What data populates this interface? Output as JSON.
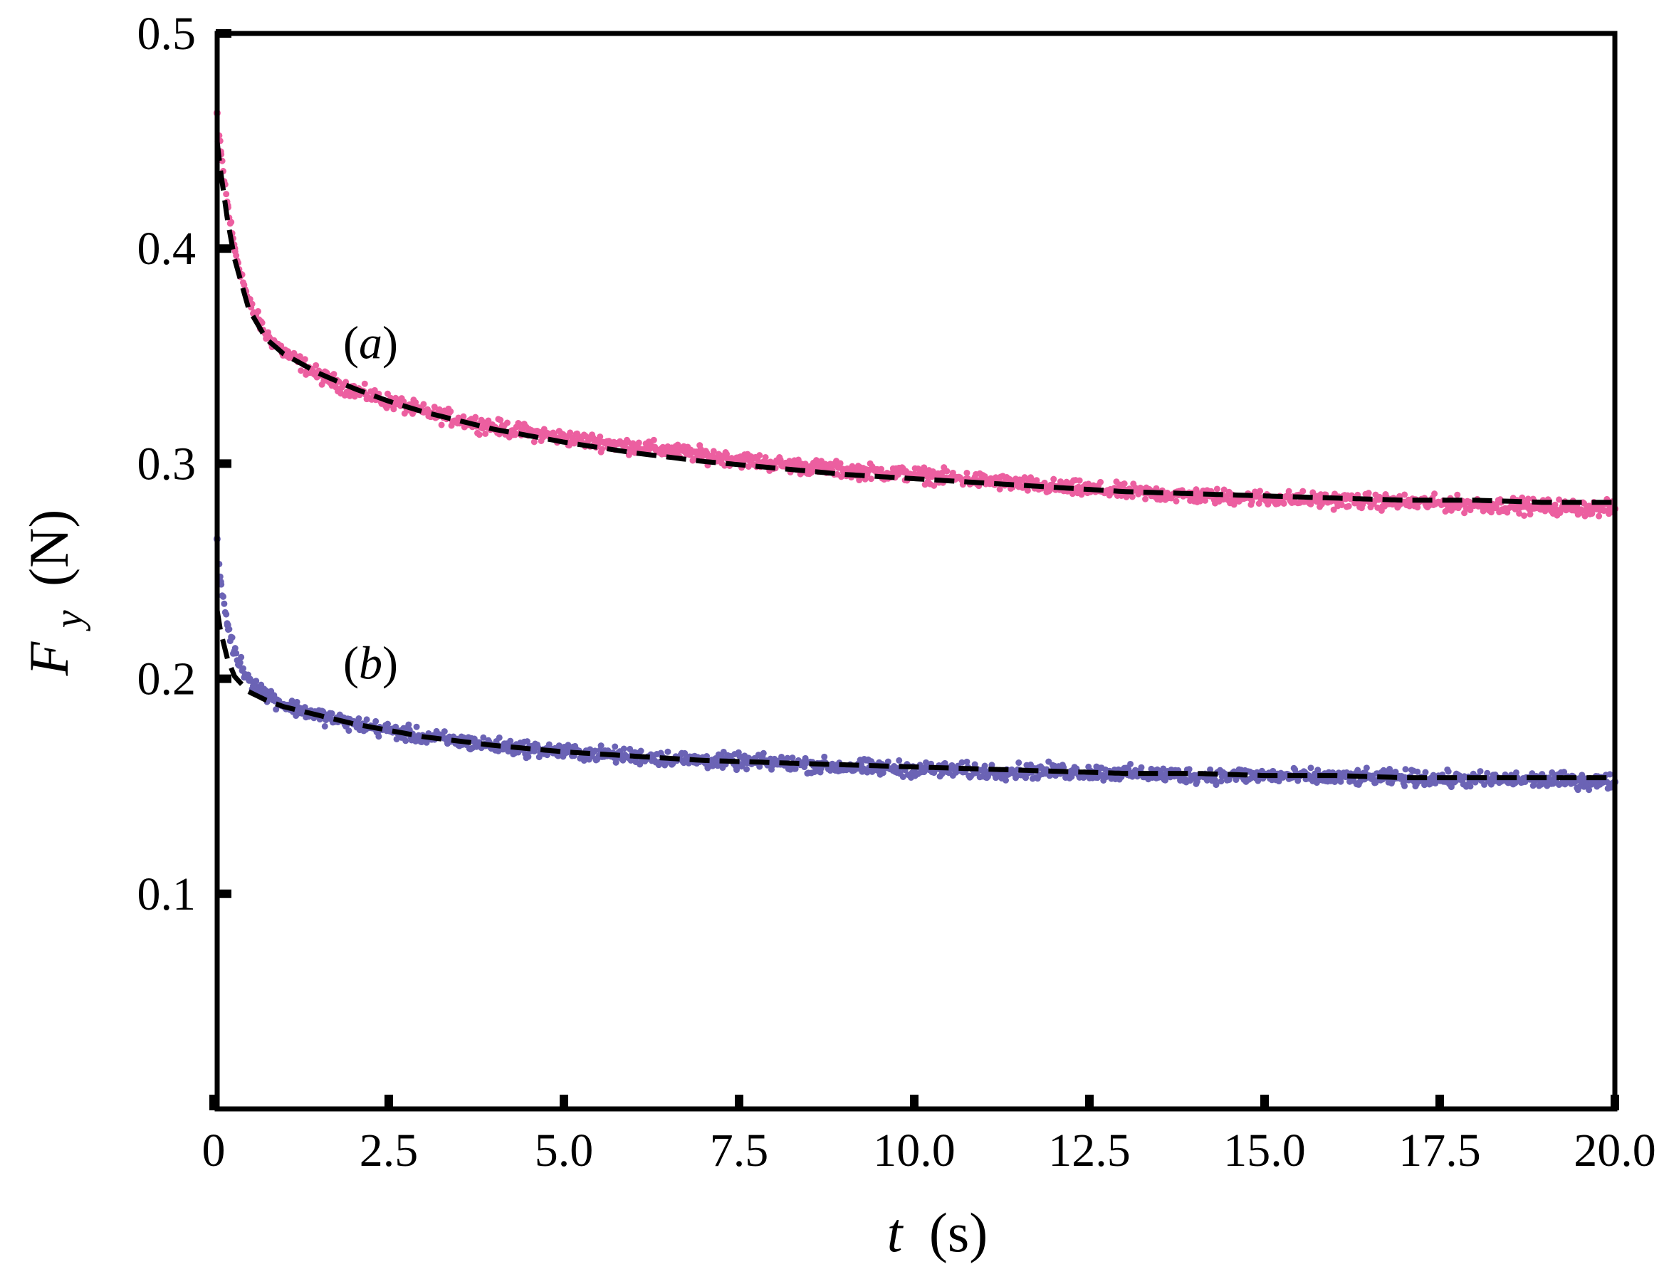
{
  "chart_data": {
    "type": "scatter",
    "xlabel_var": "t",
    "xlabel_unit": "(s)",
    "ylabel_var": "F",
    "ylabel_sub": "y",
    "ylabel_unit": "(N)",
    "xlim": [
      0,
      20
    ],
    "ylim": [
      0.0,
      0.5
    ],
    "xticks": [
      0,
      2.5,
      5.0,
      7.5,
      10.0,
      12.5,
      15.0,
      17.5,
      20.0
    ],
    "xtick_labels": [
      "0",
      "2.5",
      "5.0",
      "7.5",
      "10.0",
      "12.5",
      "15.0",
      "17.5",
      "20.0"
    ],
    "yticks": [
      0.1,
      0.2,
      0.3,
      0.4,
      0.5
    ],
    "ytick_labels": [
      "0.1",
      "0.2",
      "0.3",
      "0.4",
      "0.5"
    ],
    "grid": false,
    "fit_style": "black dashed line",
    "series": [
      {
        "name": "(a)",
        "color": "#ec5fa0",
        "x": [
          0.05,
          0.1,
          0.2,
          0.3,
          0.5,
          0.75,
          1.0,
          1.5,
          2.0,
          2.5,
          3.0,
          4.0,
          5.0,
          6.0,
          7.0,
          8.0,
          9.0,
          10.0,
          11.0,
          12.0,
          13.0,
          14.0,
          15.0,
          16.0,
          17.0,
          18.0,
          19.0,
          20.0
        ],
        "y": [
          0.463,
          0.445,
          0.42,
          0.4,
          0.375,
          0.36,
          0.352,
          0.341,
          0.334,
          0.329,
          0.324,
          0.317,
          0.312,
          0.308,
          0.304,
          0.3,
          0.297,
          0.295,
          0.292,
          0.289,
          0.287,
          0.285,
          0.284,
          0.283,
          0.282,
          0.281,
          0.28,
          0.279
        ]
      },
      {
        "name": "(b)",
        "color": "#6b63b5",
        "x": [
          0.05,
          0.1,
          0.2,
          0.3,
          0.5,
          0.75,
          1.0,
          1.5,
          2.0,
          2.5,
          3.0,
          4.0,
          5.0,
          6.0,
          7.0,
          8.0,
          9.0,
          10.0,
          11.0,
          12.0,
          13.0,
          14.0,
          15.0,
          16.0,
          17.0,
          18.0,
          19.0,
          20.0
        ],
        "y": [
          0.265,
          0.245,
          0.225,
          0.212,
          0.2,
          0.193,
          0.188,
          0.183,
          0.179,
          0.176,
          0.173,
          0.169,
          0.166,
          0.164,
          0.162,
          0.161,
          0.159,
          0.158,
          0.157,
          0.157,
          0.156,
          0.155,
          0.155,
          0.154,
          0.154,
          0.153,
          0.153,
          0.152
        ]
      }
    ],
    "fits": [
      {
        "series": "(a)",
        "x": [
          0.05,
          0.1,
          0.2,
          0.3,
          0.5,
          0.75,
          1.0,
          1.5,
          2.0,
          2.5,
          3.0,
          4.0,
          5.0,
          6.0,
          7.0,
          8.0,
          9.0,
          10.0,
          11.0,
          12.0,
          13.0,
          14.0,
          15.0,
          16.0,
          17.0,
          18.0,
          19.0,
          20.0
        ],
        "y": [
          0.45,
          0.436,
          0.413,
          0.395,
          0.372,
          0.358,
          0.351,
          0.342,
          0.335,
          0.329,
          0.324,
          0.316,
          0.31,
          0.305,
          0.301,
          0.298,
          0.295,
          0.293,
          0.291,
          0.289,
          0.287,
          0.286,
          0.285,
          0.284,
          0.283,
          0.283,
          0.282,
          0.282
        ]
      },
      {
        "series": "(b)",
        "x": [
          0.05,
          0.1,
          0.2,
          0.3,
          0.5,
          0.75,
          1.0,
          1.5,
          2.0,
          2.5,
          3.0,
          4.0,
          5.0,
          6.0,
          7.0,
          8.0,
          9.0,
          10.0,
          11.0,
          12.0,
          13.0,
          14.0,
          15.0,
          16.0,
          17.0,
          18.0,
          19.0,
          20.0
        ],
        "y": [
          0.232,
          0.222,
          0.209,
          0.201,
          0.194,
          0.19,
          0.187,
          0.183,
          0.179,
          0.176,
          0.173,
          0.169,
          0.166,
          0.164,
          0.162,
          0.161,
          0.16,
          0.159,
          0.158,
          0.157,
          0.156,
          0.156,
          0.155,
          0.155,
          0.154,
          0.154,
          0.154,
          0.154
        ]
      }
    ],
    "annotations": [
      {
        "text": "(a)",
        "series": "(a)",
        "x": 1.85,
        "y": 0.349
      },
      {
        "text": "(b)",
        "series": "(b)",
        "x": 1.85,
        "y": 0.2
      }
    ]
  }
}
